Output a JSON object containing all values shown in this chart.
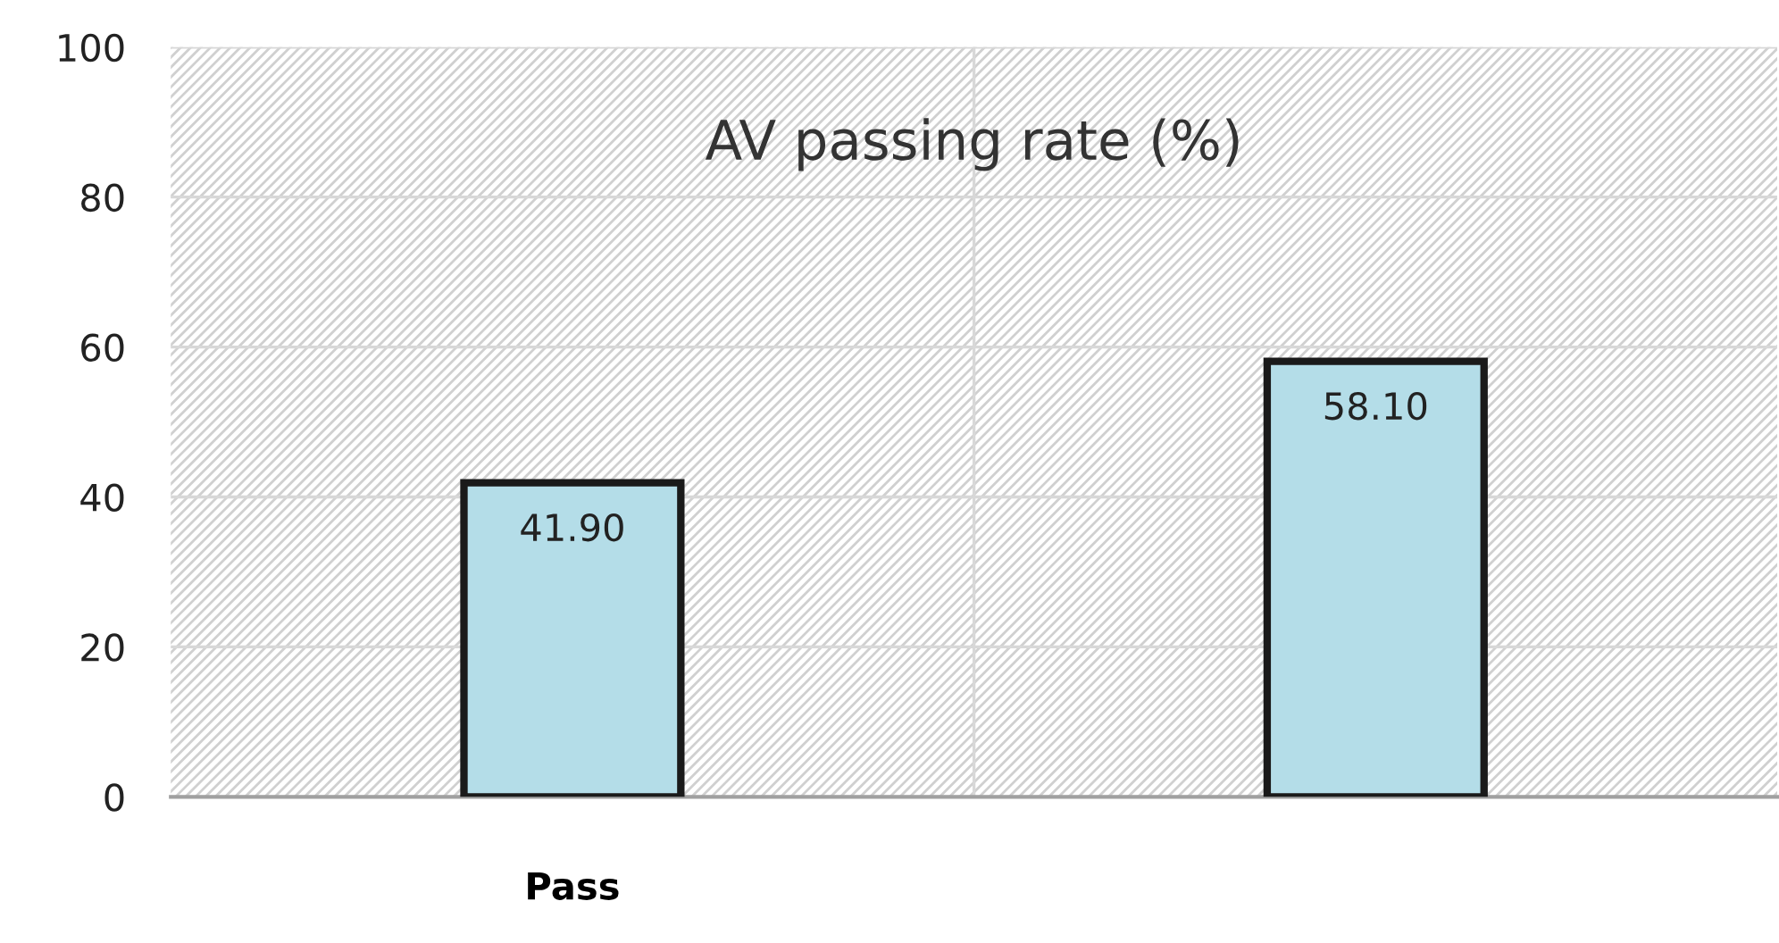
{
  "chart_data": {
    "type": "bar",
    "title": "AV passing rate (%)",
    "categories": [
      "Pass",
      null
    ],
    "values": [
      41.9,
      58.1
    ],
    "value_labels": [
      "41.90",
      "58.10"
    ],
    "color": "#b4dde8",
    "ylim": [
      0,
      100
    ],
    "yticks": [
      0,
      20,
      40,
      60,
      80,
      100
    ],
    "grid": true,
    "legend": false
  }
}
